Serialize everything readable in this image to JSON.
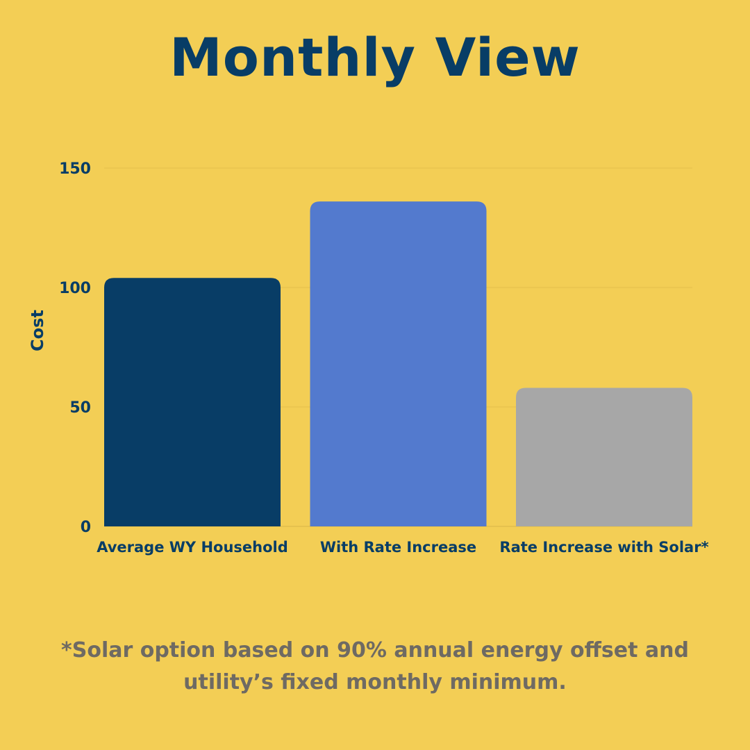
{
  "title": "Monthly View",
  "footnote": {
    "line1": "*Solar option based on 90% annual energy offset and",
    "line2": "utility’s fixed monthly minimum."
  },
  "chart_data": {
    "type": "bar",
    "title": "Monthly View",
    "xlabel": "",
    "ylabel": "Cost",
    "ylim": [
      0,
      150
    ],
    "yticks": [
      0,
      50,
      100,
      150
    ],
    "grid": true,
    "categories": [
      "Average WY Household",
      "With Rate Increase",
      "Rate Increase with Solar*"
    ],
    "values": [
      104,
      136,
      58
    ],
    "colors": [
      "#083D66",
      "#537ACE",
      "#A7A7A7"
    ]
  }
}
